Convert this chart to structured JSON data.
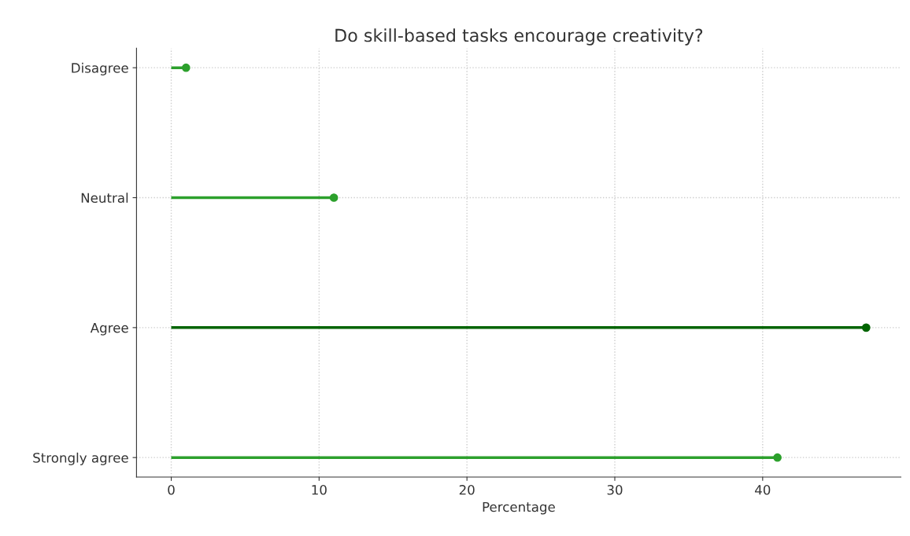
{
  "chart_data": {
    "type": "lollipop",
    "orientation": "horizontal",
    "title": "Do skill-based tasks encourage creativity?",
    "xlabel": "Percentage",
    "categories": [
      "Disagree",
      "Neutral",
      "Agree",
      "Strongly agree"
    ],
    "series": [
      {
        "colors": [
          "#2ca02c",
          "#2ca02c",
          "#006400",
          "#2ca02c"
        ],
        "values": [
          1,
          11,
          47,
          41
        ]
      }
    ],
    "xlim": [
      -2.35,
      49.35
    ],
    "xticks": [
      0,
      10,
      20,
      30,
      40
    ],
    "grid": true,
    "marker": "circle"
  }
}
